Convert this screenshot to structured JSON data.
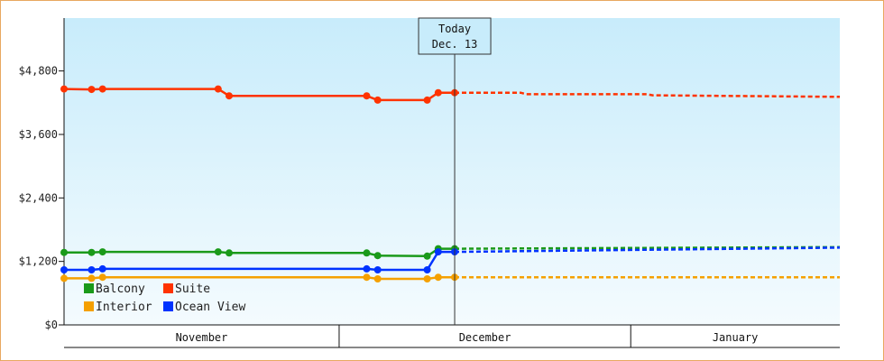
{
  "chart_data": {
    "type": "line",
    "title": "",
    "xlabel": "",
    "ylabel": "",
    "ylim": [
      0,
      5800
    ],
    "y_ticks": [
      "$0",
      "$1,200",
      "$2,400",
      "$3,600",
      "$4,800"
    ],
    "y_tick_values": [
      0,
      1200,
      2400,
      3600,
      4800
    ],
    "months": [
      {
        "label": "November",
        "from": 1,
        "to": 51
      },
      {
        "label": "December",
        "from": 51,
        "to": 104
      },
      {
        "label": "January",
        "from": 104,
        "to": 142
      }
    ],
    "xlim": [
      1,
      142
    ],
    "grid": false,
    "legend": {
      "position": "bottom-left",
      "order": [
        "Balcony",
        "Suite",
        "Interior",
        "Ocean View"
      ]
    },
    "today": {
      "line1": "Today",
      "line2": "Dec. 13",
      "x": 72
    },
    "series": [
      {
        "name": "Balcony",
        "color": "#1a9a1a",
        "points": [
          [
            1,
            1370
          ],
          [
            6,
            1370
          ],
          [
            8,
            1380
          ],
          [
            29,
            1380
          ],
          [
            31,
            1360
          ],
          [
            56,
            1360
          ],
          [
            58,
            1310
          ],
          [
            67,
            1300
          ],
          [
            69,
            1440
          ],
          [
            72,
            1440
          ]
        ],
        "markers": [
          [
            1,
            1370
          ],
          [
            6,
            1370
          ],
          [
            8,
            1380
          ],
          [
            29,
            1380
          ],
          [
            31,
            1360
          ],
          [
            56,
            1360
          ],
          [
            58,
            1310
          ],
          [
            67,
            1300
          ],
          [
            69,
            1440
          ],
          [
            72,
            1440
          ]
        ],
        "forecast": [
          [
            72,
            1440
          ],
          [
            142,
            1470
          ]
        ]
      },
      {
        "name": "Suite",
        "color": "#ff3300",
        "points": [
          [
            1,
            4460
          ],
          [
            6,
            4450
          ],
          [
            8,
            4460
          ],
          [
            29,
            4460
          ],
          [
            31,
            4330
          ],
          [
            56,
            4330
          ],
          [
            58,
            4250
          ],
          [
            67,
            4250
          ],
          [
            69,
            4390
          ],
          [
            72,
            4390
          ]
        ],
        "markers": [
          [
            1,
            4460
          ],
          [
            6,
            4450
          ],
          [
            8,
            4460
          ],
          [
            29,
            4460
          ],
          [
            31,
            4330
          ],
          [
            56,
            4330
          ],
          [
            58,
            4250
          ],
          [
            67,
            4250
          ],
          [
            69,
            4390
          ],
          [
            72,
            4390
          ]
        ],
        "forecast": [
          [
            72,
            4390
          ],
          [
            84,
            4390
          ],
          [
            85,
            4360
          ],
          [
            107,
            4360
          ],
          [
            108,
            4340
          ],
          [
            142,
            4310
          ]
        ]
      },
      {
        "name": "Interior",
        "color": "#f5a000",
        "points": [
          [
            1,
            880
          ],
          [
            6,
            880
          ],
          [
            8,
            900
          ],
          [
            56,
            900
          ],
          [
            58,
            870
          ],
          [
            67,
            870
          ],
          [
            69,
            900
          ],
          [
            72,
            900
          ]
        ],
        "markers": [
          [
            1,
            880
          ],
          [
            6,
            880
          ],
          [
            8,
            900
          ],
          [
            56,
            900
          ],
          [
            58,
            870
          ],
          [
            67,
            870
          ],
          [
            69,
            900
          ],
          [
            72,
            900
          ]
        ],
        "forecast": [
          [
            72,
            900
          ],
          [
            142,
            900
          ]
        ]
      },
      {
        "name": "Ocean View",
        "color": "#0033ff",
        "points": [
          [
            1,
            1040
          ],
          [
            6,
            1040
          ],
          [
            8,
            1060
          ],
          [
            56,
            1060
          ],
          [
            58,
            1040
          ],
          [
            67,
            1040
          ],
          [
            69,
            1380
          ],
          [
            72,
            1380
          ]
        ],
        "markers": [
          [
            1,
            1040
          ],
          [
            6,
            1040
          ],
          [
            8,
            1060
          ],
          [
            56,
            1060
          ],
          [
            58,
            1040
          ],
          [
            67,
            1040
          ],
          [
            69,
            1380
          ],
          [
            72,
            1380
          ]
        ],
        "forecast": [
          [
            72,
            1380
          ],
          [
            142,
            1460
          ]
        ]
      }
    ]
  },
  "colors": {
    "plot_top": "#c8ecfb",
    "plot_bottom": "#f4fbfe",
    "border": "#e8a860"
  }
}
